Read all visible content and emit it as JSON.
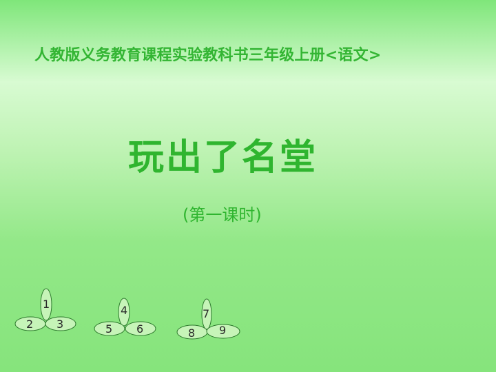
{
  "header": {
    "title": "人教版义务教育课程实验教科书三年级上册<语文>"
  },
  "main": {
    "title": "玩出了名堂",
    "subtitle": "(第一课时)"
  },
  "decor": {
    "groups": [
      {
        "top": "1",
        "left": "2",
        "right": "3"
      },
      {
        "top": "4",
        "left": "5",
        "right": "6"
      },
      {
        "top": "7",
        "left": "8",
        "right": "9"
      }
    ]
  },
  "colors": {
    "title_green": "#2fb52f",
    "petal_fill": "#c6f4b8",
    "petal_stroke": "#2d7a2d"
  }
}
